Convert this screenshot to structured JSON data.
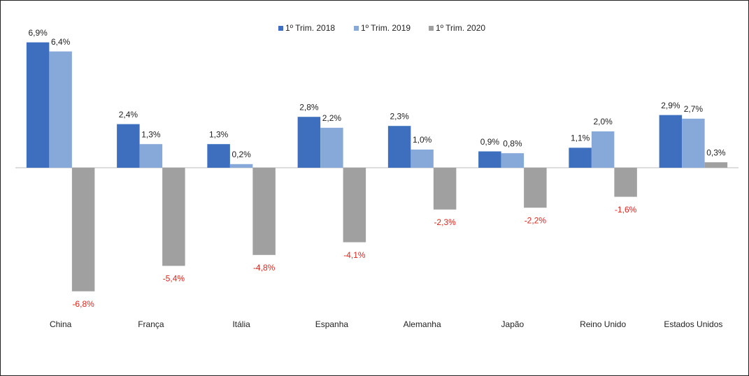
{
  "chart_data": {
    "type": "bar",
    "categories": [
      "China",
      "França",
      "Itália",
      "Espanha",
      "Alemanha",
      "Japão",
      "Reino Unido",
      "Estados Unidos"
    ],
    "series": [
      {
        "name": "1º Trim. 2018",
        "color": "#3d6fbe",
        "values": [
          6.9,
          2.4,
          1.3,
          2.8,
          2.3,
          0.9,
          1.1,
          2.9
        ],
        "value_labels": [
          "6,9%",
          "2,4%",
          "1,3%",
          "2,8%",
          "2,3%",
          "0,9%",
          "1,1%",
          "2,9%"
        ]
      },
      {
        "name": "1º Trim. 2019",
        "color": "#87a9da",
        "values": [
          6.4,
          1.3,
          0.2,
          2.2,
          1.0,
          0.8,
          2.0,
          2.7
        ],
        "value_labels": [
          "6,4%",
          "1,3%",
          "0,2%",
          "2,2%",
          "1,0%",
          "0,8%",
          "2,0%",
          "2,7%"
        ]
      },
      {
        "name": "1º Trim. 2020",
        "color": "#a0a0a0",
        "values": [
          -6.8,
          -5.4,
          -4.8,
          -4.1,
          -2.3,
          -2.2,
          -1.6,
          0.3
        ],
        "value_labels": [
          "-6,8%",
          "-5,4%",
          "-4,8%",
          "-4,1%",
          "-2,3%",
          "-2,2%",
          "-1,6%",
          "0,3%"
        ]
      }
    ]
  }
}
